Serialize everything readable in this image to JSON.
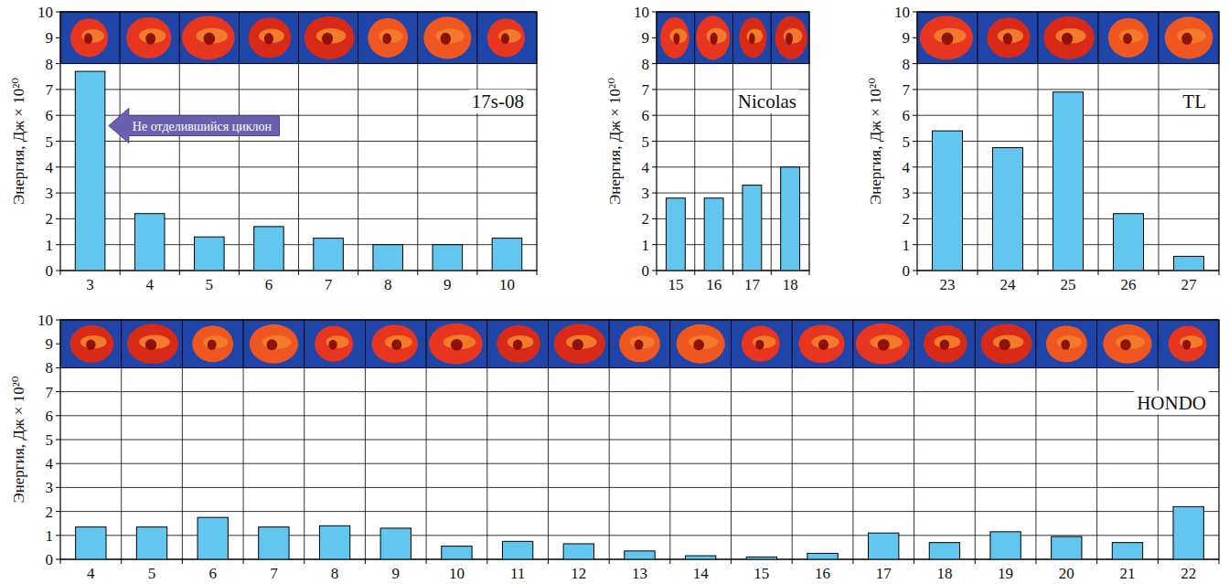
{
  "chart_data": [
    {
      "type": "bar",
      "title": "17s-08",
      "y_label": "Энергия, Дж × 10²⁰",
      "categories": [
        3,
        4,
        5,
        6,
        7,
        8,
        9,
        10
      ],
      "values": [
        7.7,
        2.2,
        1.3,
        1.7,
        1.25,
        1.0,
        1.0,
        1.25
      ],
      "color": "#62c6ee",
      "ylim": [
        0,
        10
      ],
      "yticks": [
        0,
        1,
        2,
        3,
        4,
        5,
        6,
        7,
        8,
        9,
        10
      ],
      "grid": true,
      "annotation": "Не отделившийся циклон"
    },
    {
      "type": "bar",
      "title": "Nicolas",
      "y_label": "Энергия, Дж × 10²⁰",
      "categories": [
        15,
        16,
        17,
        18
      ],
      "values": [
        2.8,
        2.8,
        3.3,
        4.0
      ],
      "color": "#62c6ee",
      "ylim": [
        0,
        10
      ],
      "yticks": [
        0,
        1,
        2,
        3,
        4,
        5,
        6,
        7,
        8,
        9,
        10
      ],
      "grid": true
    },
    {
      "type": "bar",
      "title": "TL",
      "y_label": "Энергия, Дж × 10²⁰",
      "categories": [
        23,
        24,
        25,
        26,
        27
      ],
      "values": [
        5.4,
        4.75,
        6.9,
        2.2,
        0.55
      ],
      "color": "#62c6ee",
      "ylim": [
        0,
        10
      ],
      "yticks": [
        0,
        1,
        2,
        3,
        4,
        5,
        6,
        7,
        8,
        9,
        10
      ],
      "grid": true
    },
    {
      "type": "bar",
      "title": "HONDO",
      "y_label": "Энергия, Дж × 10²⁰",
      "categories": [
        4,
        5,
        6,
        7,
        8,
        9,
        10,
        11,
        12,
        13,
        14,
        15,
        16,
        17,
        18,
        19,
        20,
        21,
        22
      ],
      "values": [
        1.35,
        1.35,
        1.75,
        1.35,
        1.4,
        1.3,
        0.55,
        0.75,
        0.65,
        0.35,
        0.15,
        0.1,
        0.25,
        1.1,
        0.7,
        1.15,
        0.95,
        0.7,
        2.2
      ],
      "color": "#62c6ee",
      "ylim": [
        0,
        10
      ],
      "yticks": [
        0,
        1,
        2,
        3,
        4,
        5,
        6,
        7,
        8,
        9,
        10
      ],
      "grid": true
    }
  ]
}
